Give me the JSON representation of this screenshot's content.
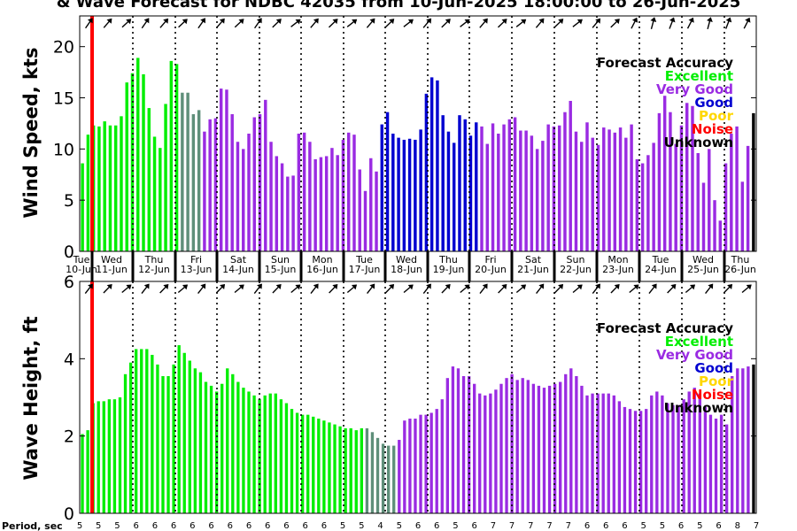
{
  "title": "& Wave Forecast for NDBC 42035 from 10-Jun-2025 18:00:00 to 26-Jun-2025",
  "legend": {
    "heading": "Forecast Accuracy",
    "items": [
      {
        "label": "Excellent",
        "color": "#00ee00"
      },
      {
        "label": "Very Good",
        "color": "#9a2be2"
      },
      {
        "label": "Good",
        "color": "#0000d0"
      },
      {
        "label": "Poor",
        "color": "#ffd700"
      },
      {
        "label": "Noise",
        "color": "#ff0000"
      },
      {
        "label": "Unknown",
        "color": "#000000"
      }
    ]
  },
  "colors": {
    "excellent": "#00ee00",
    "very_good": "#9a2be2",
    "good": "#0000d0",
    "transition": "#5f8f7a",
    "now_line": "#ff0000"
  },
  "days": [
    {
      "dow": "Tue",
      "date": "10-Jun"
    },
    {
      "dow": "Wed",
      "date": "11-Jun"
    },
    {
      "dow": "Thu",
      "date": "12-Jun"
    },
    {
      "dow": "Fri",
      "date": "13-Jun"
    },
    {
      "dow": "Sat",
      "date": "14-Jun"
    },
    {
      "dow": "Sun",
      "date": "15-Jun"
    },
    {
      "dow": "Mon",
      "date": "16-Jun"
    },
    {
      "dow": "Tue",
      "date": "17-Jun"
    },
    {
      "dow": "Wed",
      "date": "18-Jun"
    },
    {
      "dow": "Thu",
      "date": "19-Jun"
    },
    {
      "dow": "Fri",
      "date": "20-Jun"
    },
    {
      "dow": "Sat",
      "date": "21-Jun"
    },
    {
      "dow": "Sun",
      "date": "22-Jun"
    },
    {
      "dow": "Mon",
      "date": "23-Jun"
    },
    {
      "dow": "Tue",
      "date": "24-Jun"
    },
    {
      "dow": "Wed",
      "date": "25-Jun"
    },
    {
      "dow": "Thu",
      "date": "26-Jun"
    }
  ],
  "period_label": "Period, sec",
  "periods": [
    "5",
    "5",
    "5",
    "6",
    "6",
    "6",
    "6",
    "6",
    "6",
    "6",
    "6",
    "6",
    "6",
    "6",
    "5",
    "5",
    "4",
    "5",
    "6",
    "6",
    "5",
    "6",
    "7",
    "7",
    "7",
    "7",
    "7",
    "6",
    "6",
    "6",
    "5",
    "5",
    "6",
    "5",
    "6",
    "8",
    "7"
  ],
  "chart_data": [
    {
      "type": "bar",
      "ylabel": "Wind Speed, kts",
      "ylim": [
        0,
        23
      ],
      "yticks": [
        0,
        5,
        10,
        15,
        20
      ],
      "values": [
        8.6,
        11.4,
        12.3,
        12.2,
        12.7,
        12.3,
        12.3,
        13.2,
        16.5,
        17.4,
        18.9,
        17.3,
        14.0,
        11.2,
        10.1,
        14.4,
        18.6,
        18.3,
        15.5,
        15.5,
        13.4,
        13.8,
        11.7,
        12.9,
        13.0,
        15.9,
        15.8,
        13.4,
        10.7,
        10.0,
        11.5,
        13.1,
        13.4,
        14.8,
        10.7,
        9.3,
        8.6,
        7.3,
        7.4,
        11.5,
        11.6,
        10.7,
        9.0,
        9.2,
        9.3,
        10.1,
        9.4,
        10.9,
        11.6,
        11.4,
        8.0,
        5.9,
        9.1,
        7.8,
        12.4,
        13.6,
        11.5,
        11.1,
        10.9,
        11.0,
        10.9,
        11.9,
        15.4,
        17.0,
        16.7,
        13.3,
        11.7,
        10.6,
        13.3,
        12.9,
        11.3,
        12.6,
        12.2,
        10.5,
        12.5,
        11.5,
        12.4,
        12.9,
        13.1,
        11.8,
        11.8,
        11.3,
        10.0,
        10.8,
        12.4,
        12.2,
        12.3,
        13.6,
        14.7,
        11.7,
        10.7,
        12.6,
        11.1,
        10.4,
        12.1,
        11.9,
        11.6,
        12.1,
        11.1,
        12.4,
        9.0,
        8.6,
        9.4,
        10.6,
        13.5,
        15.2,
        13.6,
        10.5,
        12.3,
        14.5,
        14.2,
        9.6,
        6.7,
        10.0,
        5.0,
        3.0,
        8.6,
        11.5,
        12.2,
        6.8,
        10.3,
        13.5
      ],
      "accuracy": [
        "E",
        "E",
        "E",
        "E",
        "E",
        "E",
        "E",
        "E",
        "E",
        "E",
        "E",
        "E",
        "E",
        "E",
        "E",
        "E",
        "E",
        "E",
        "T",
        "T",
        "T",
        "T",
        "V",
        "V",
        "V",
        "V",
        "V",
        "V",
        "V",
        "V",
        "V",
        "V",
        "V",
        "V",
        "V",
        "V",
        "V",
        "V",
        "V",
        "V",
        "V",
        "V",
        "V",
        "V",
        "V",
        "V",
        "V",
        "V",
        "V",
        "V",
        "V",
        "V",
        "V",
        "V",
        "G",
        "G",
        "G",
        "G",
        "G",
        "G",
        "G",
        "G",
        "G",
        "G",
        "G",
        "G",
        "G",
        "G",
        "G",
        "G",
        "G",
        "G",
        "V",
        "V",
        "V",
        "V",
        "V",
        "V",
        "V",
        "V",
        "V",
        "V",
        "V",
        "V",
        "V",
        "V",
        "V",
        "V",
        "V",
        "V",
        "V",
        "V",
        "V",
        "V",
        "V",
        "V",
        "V",
        "V",
        "V",
        "V",
        "V",
        "V",
        "V",
        "V",
        "V",
        "V",
        "V",
        "V",
        "V",
        "V",
        "V",
        "V",
        "V",
        "V",
        "V",
        "V",
        "V",
        "V",
        "V",
        "V",
        "V"
      ]
    },
    {
      "type": "bar",
      "ylabel": "Wave Height, ft",
      "ylim": [
        0,
        6
      ],
      "yticks": [
        0,
        2,
        4,
        6
      ],
      "values": [
        2.05,
        2.15,
        2.85,
        2.9,
        2.9,
        2.95,
        2.95,
        3.0,
        3.6,
        3.9,
        4.25,
        4.25,
        4.25,
        4.1,
        3.85,
        3.55,
        3.55,
        3.85,
        4.35,
        4.15,
        3.95,
        3.75,
        3.65,
        3.4,
        3.3,
        3.15,
        3.35,
        3.75,
        3.6,
        3.4,
        3.25,
        3.15,
        3.05,
        2.95,
        3.05,
        3.1,
        3.1,
        2.95,
        2.85,
        2.7,
        2.6,
        2.55,
        2.55,
        2.5,
        2.45,
        2.4,
        2.35,
        2.3,
        2.25,
        2.2,
        2.2,
        2.15,
        2.2,
        2.2,
        2.1,
        1.95,
        1.8,
        1.75,
        1.75,
        1.9,
        2.4,
        2.45,
        2.45,
        2.55,
        2.55,
        2.6,
        2.7,
        2.95,
        3.5,
        3.8,
        3.75,
        3.55,
        3.55,
        3.35,
        3.1,
        3.05,
        3.1,
        3.2,
        3.35,
        3.5,
        3.6,
        3.45,
        3.5,
        3.45,
        3.35,
        3.3,
        3.25,
        3.3,
        3.35,
        3.4,
        3.6,
        3.75,
        3.55,
        3.3,
        3.05,
        3.1,
        3.1,
        3.1,
        3.1,
        3.05,
        2.9,
        2.75,
        2.7,
        2.65,
        2.65,
        2.7,
        3.05,
        3.15,
        3.05,
        2.85,
        2.8,
        2.8,
        2.95,
        3.15,
        3.25,
        3.1,
        2.75,
        2.55,
        2.45,
        2.55,
        2.3,
        3.55,
        3.75,
        3.75,
        3.8,
        3.85
      ],
      "accuracy": [
        "E",
        "E",
        "E",
        "E",
        "E",
        "E",
        "E",
        "E",
        "E",
        "E",
        "E",
        "E",
        "E",
        "E",
        "E",
        "E",
        "E",
        "E",
        "E",
        "E",
        "E",
        "E",
        "E",
        "E",
        "E",
        "E",
        "E",
        "E",
        "E",
        "E",
        "E",
        "E",
        "E",
        "E",
        "E",
        "E",
        "E",
        "E",
        "E",
        "E",
        "E",
        "E",
        "E",
        "E",
        "E",
        "E",
        "E",
        "E",
        "E",
        "E",
        "E",
        "E",
        "E",
        "T",
        "T",
        "T",
        "T",
        "T",
        "T",
        "V",
        "V",
        "V",
        "V",
        "V",
        "V",
        "V",
        "V",
        "V",
        "V",
        "V",
        "V",
        "V",
        "V",
        "V",
        "V",
        "V",
        "V",
        "V",
        "V",
        "V",
        "V",
        "V",
        "V",
        "V",
        "V",
        "V",
        "V",
        "V",
        "V",
        "V",
        "V",
        "V",
        "V",
        "V",
        "V",
        "V",
        "V",
        "V",
        "V",
        "V",
        "V",
        "V",
        "V",
        "V",
        "V",
        "V",
        "V",
        "V",
        "V",
        "V",
        "V",
        "V",
        "V",
        "V",
        "V",
        "V",
        "V",
        "V",
        "V",
        "V",
        "V",
        "V",
        "V",
        "V",
        "V"
      ]
    }
  ]
}
